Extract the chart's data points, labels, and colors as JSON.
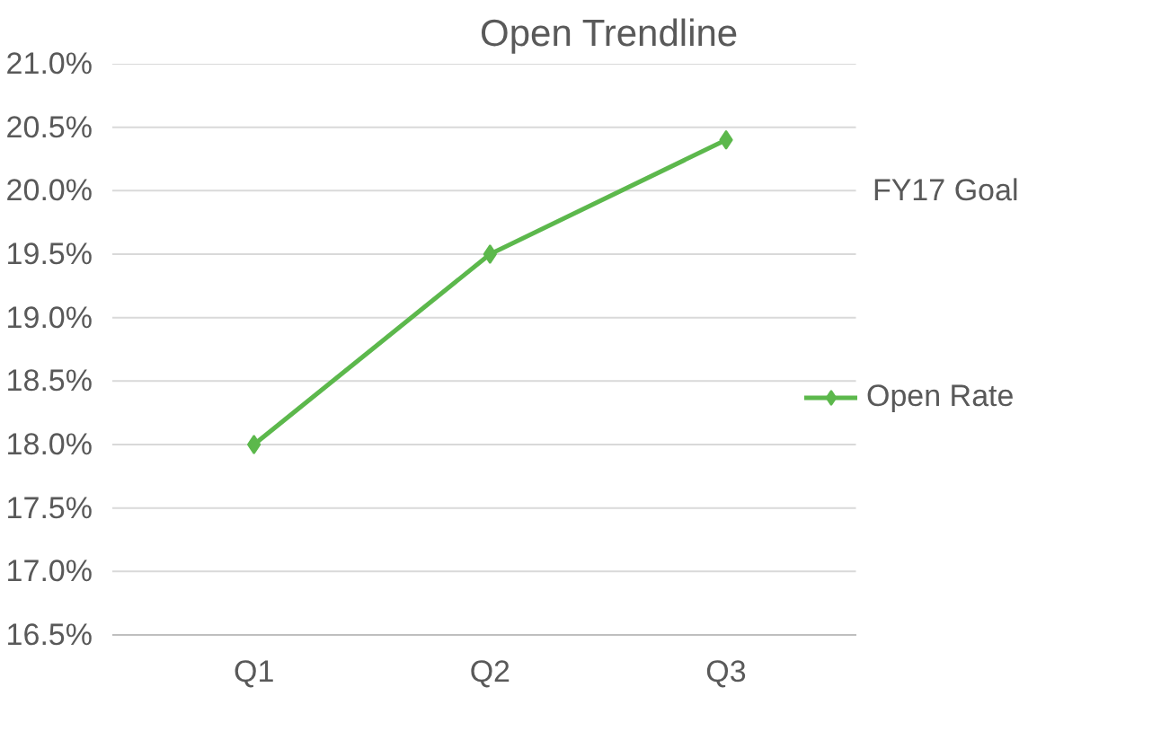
{
  "chart_data": {
    "type": "line",
    "title": "Open Trendline",
    "categories": [
      "Q1",
      "Q2",
      "Q3"
    ],
    "series": [
      {
        "name": "Open Rate",
        "color": "#5cb84c",
        "values": [
          18.0,
          19.5,
          20.4
        ]
      }
    ],
    "ylim": [
      16.5,
      21.0
    ],
    "yticks": [
      {
        "value": 16.5,
        "label": "16.5%"
      },
      {
        "value": 17.0,
        "label": "17.0%"
      },
      {
        "value": 17.5,
        "label": "17.5%"
      },
      {
        "value": 18.0,
        "label": "18.0%"
      },
      {
        "value": 18.5,
        "label": "18.5%"
      },
      {
        "value": 19.0,
        "label": "19.0%"
      },
      {
        "value": 19.5,
        "label": "19.5%"
      },
      {
        "value": 20.0,
        "label": "20.0%"
      },
      {
        "value": 20.5,
        "label": "20.5%"
      },
      {
        "value": 21.0,
        "label": "21.0%"
      }
    ],
    "annotations": [
      "FY17 Goal"
    ],
    "grid": "y",
    "legend": "right",
    "marker": "diamond",
    "line_style": "solid"
  }
}
